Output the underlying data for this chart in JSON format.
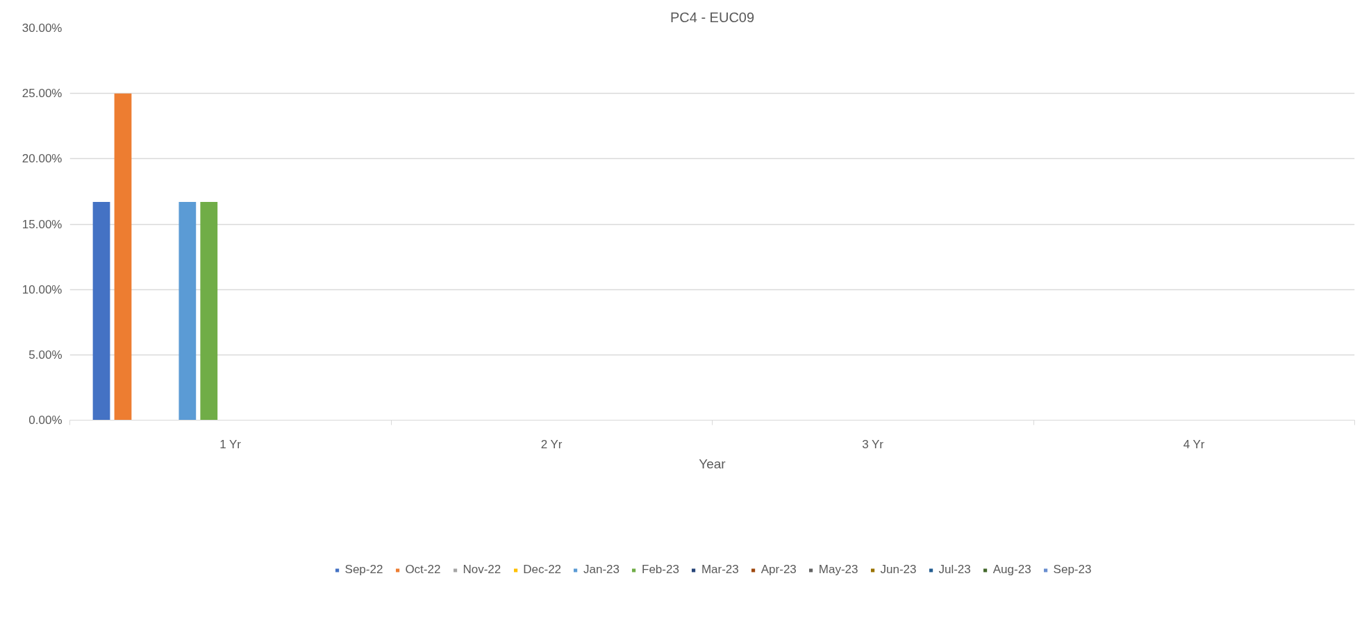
{
  "chart_data": {
    "type": "bar",
    "title": "PC4 - EUC09",
    "xlabel": "Year",
    "categories": [
      "1 Yr",
      "2 Yr",
      "3 Yr",
      "4 Yr"
    ],
    "ylim": [
      0,
      30
    ],
    "yticks": [
      {
        "value": 0,
        "label": "0.00%"
      },
      {
        "value": 5,
        "label": "5.00%"
      },
      {
        "value": 10,
        "label": "10.00%"
      },
      {
        "value": 15,
        "label": "15.00%"
      },
      {
        "value": 20,
        "label": "20.00%"
      },
      {
        "value": 25,
        "label": "25.00%"
      },
      {
        "value": 30,
        "label": "30.00%"
      }
    ],
    "grid": "y",
    "legend": "bottom",
    "series": [
      {
        "name": "Sep-22",
        "color": "#4472c4",
        "values": [
          16.7,
          null,
          null,
          null
        ]
      },
      {
        "name": "Oct-22",
        "color": "#ed7d31",
        "values": [
          25,
          null,
          null,
          null
        ]
      },
      {
        "name": "Nov-22",
        "color": "#a5a5a5",
        "values": [
          null,
          null,
          null,
          null
        ]
      },
      {
        "name": "Dec-22",
        "color": "#ffc000",
        "values": [
          null,
          null,
          null,
          null
        ]
      },
      {
        "name": "Jan-23",
        "color": "#5b9bd5",
        "values": [
          16.7,
          null,
          null,
          null
        ]
      },
      {
        "name": "Feb-23",
        "color": "#70ad47",
        "values": [
          16.7,
          null,
          null,
          null
        ]
      },
      {
        "name": "Mar-23",
        "color": "#264478",
        "values": [
          null,
          null,
          null,
          null
        ]
      },
      {
        "name": "Apr-23",
        "color": "#9e480e",
        "values": [
          null,
          null,
          null,
          null
        ]
      },
      {
        "name": "May-23",
        "color": "#636363",
        "values": [
          null,
          null,
          null,
          null
        ]
      },
      {
        "name": "Jun-23",
        "color": "#997300",
        "values": [
          null,
          null,
          null,
          null
        ]
      },
      {
        "name": "Jul-23",
        "color": "#255e91",
        "values": [
          null,
          null,
          null,
          null
        ]
      },
      {
        "name": "Aug-23",
        "color": "#43682b",
        "values": [
          null,
          null,
          null,
          null
        ]
      },
      {
        "name": "Sep-23",
        "color": "#698ed0",
        "values": [
          null,
          null,
          null,
          null
        ]
      }
    ]
  }
}
